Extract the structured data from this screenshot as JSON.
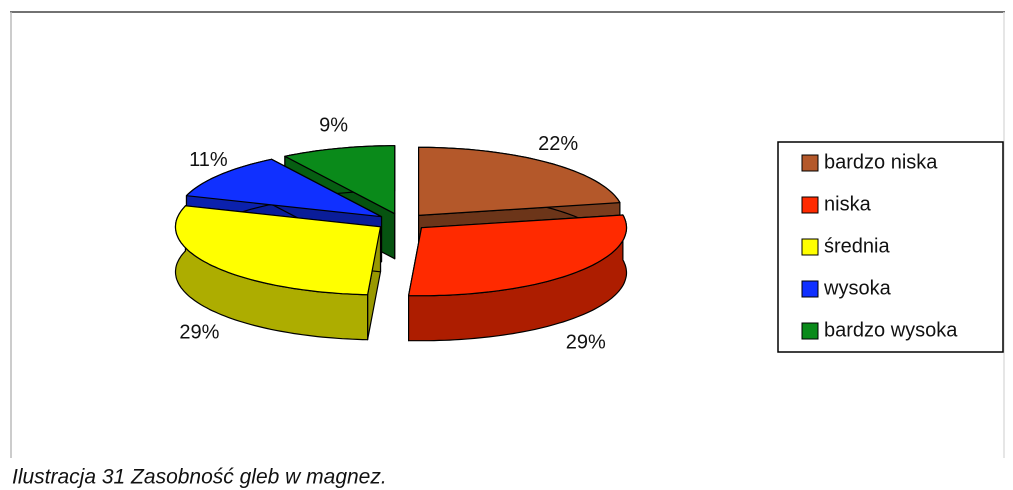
{
  "chart_data": {
    "type": "pie3d",
    "caption": "Ilustracja 31 Zasobność gleb w magnez.",
    "categories": [
      "bardzo niska",
      "niska",
      "średnia",
      "wysoka",
      "bardzo wysoka"
    ],
    "values": [
      22,
      29,
      29,
      11,
      9
    ],
    "value_labels": [
      "22%",
      "29%",
      "29%",
      "11%",
      "9%"
    ],
    "colors": [
      "#b4582a",
      "#ff2a00",
      "#ffff00",
      "#1030ff",
      "#0a8a1a"
    ],
    "legend": "right"
  }
}
